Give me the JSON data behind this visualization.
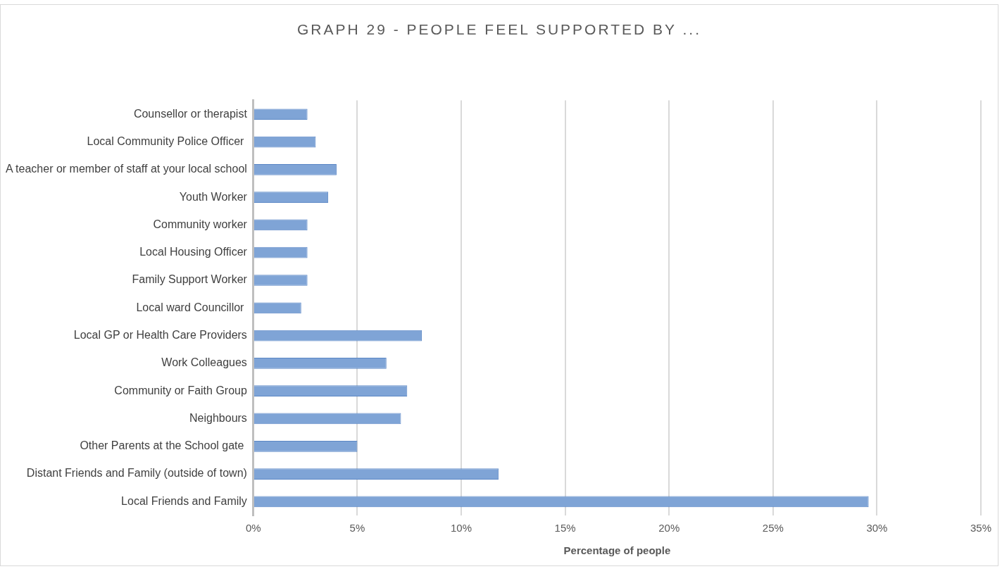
{
  "chart_data": {
    "type": "bar",
    "orientation": "horizontal",
    "title": "GRAPH 29 - PEOPLE FEEL SUPPORTED BY ...",
    "xlabel": "Percentage of people",
    "categories": [
      "Counsellor or therapist",
      "Local Community Police Officer ",
      "A teacher or member of staff at your local school",
      "Youth Worker",
      "Community worker",
      "Local Housing Officer",
      "Family Support Worker",
      "Local ward Councillor ",
      "Local GP or Health Care Providers",
      "Work Colleagues",
      "Community or Faith Group",
      "Neighbours",
      "Other Parents at the School gate ",
      "Distant Friends and Family (outside of town)",
      "Local Friends and Family"
    ],
    "values": [
      2.6,
      3.0,
      4.0,
      3.6,
      2.6,
      2.6,
      2.6,
      2.3,
      8.1,
      6.4,
      7.4,
      7.1,
      5.0,
      11.8,
      29.6
    ],
    "color": "#7fa4d6",
    "xlim": [
      0,
      35
    ],
    "xticks": [
      {
        "value": 0,
        "label": "0%"
      },
      {
        "value": 5,
        "label": "5%"
      },
      {
        "value": 10,
        "label": "10%"
      },
      {
        "value": 15,
        "label": "15%"
      },
      {
        "value": 20,
        "label": "20%"
      },
      {
        "value": 25,
        "label": "25%"
      },
      {
        "value": 30,
        "label": "30%"
      },
      {
        "value": 35,
        "label": "35%"
      }
    ],
    "grid": "x",
    "legend": false
  }
}
